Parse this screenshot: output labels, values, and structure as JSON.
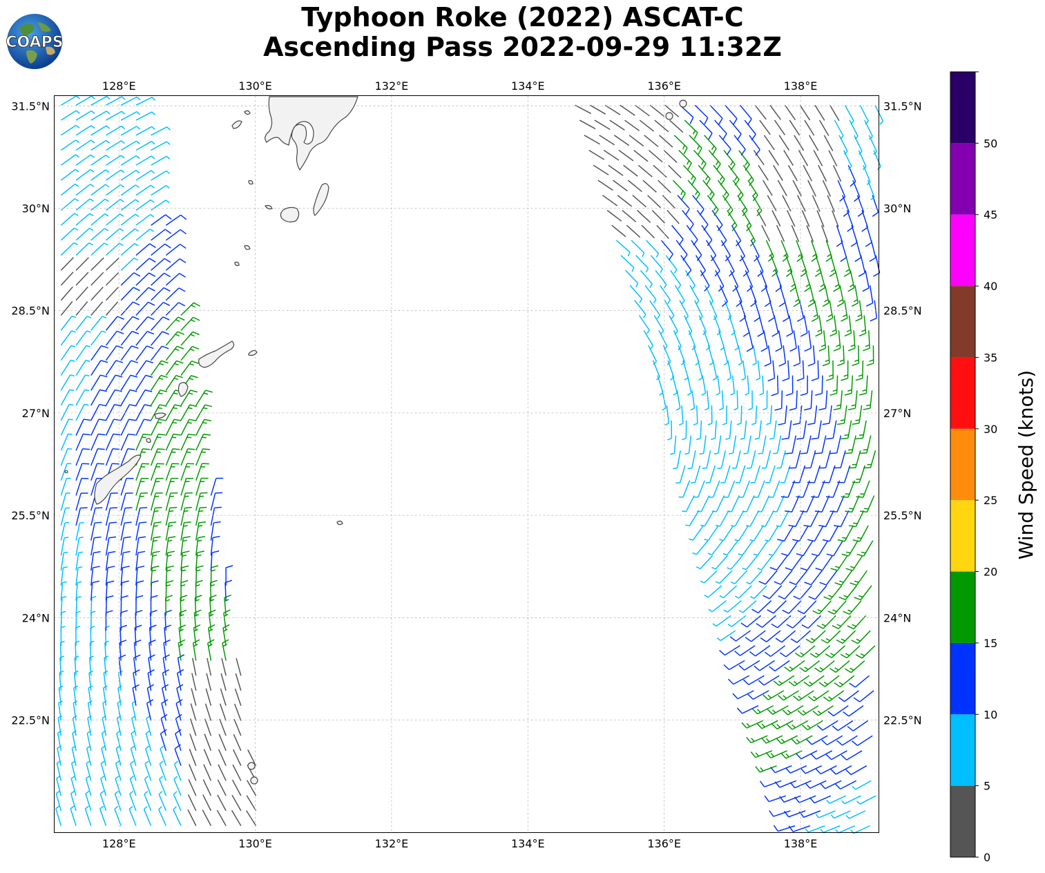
{
  "header": {
    "title_line1": "Typhoon Roke (2022) ASCAT-C",
    "title_line2": "Ascending Pass 2022-09-29 11:32Z",
    "logo_text": "COAPS"
  },
  "map": {
    "lon_labels": [
      "128°E",
      "130°E",
      "132°E",
      "134°E",
      "136°E",
      "138°E"
    ],
    "lat_labels": [
      "31.5°N",
      "30°N",
      "28.5°N",
      "27°N",
      "25.5°N",
      "24°N",
      "22.5°N"
    ],
    "lon_range": [
      127.05,
      139.15
    ],
    "lat_range": [
      20.85,
      31.65
    ],
    "gridlines": true,
    "swaths": [
      {
        "name": "west",
        "lon_edges_south": [
          127.1,
          130.2
        ],
        "lon_edges_north": [
          127.1,
          128.4
        ]
      },
      {
        "name": "east",
        "lon_edges_south": [
          137.9,
          139.15
        ],
        "lon_edges_north": [
          134.6,
          139.15
        ]
      }
    ]
  },
  "colorbar": {
    "label": "Wind Speed (knots)",
    "ticks": [
      "0",
      "5",
      "10",
      "15",
      "20",
      "25",
      "30",
      "35",
      "40",
      "45",
      "50"
    ],
    "bins": [
      {
        "min": 0,
        "max": 5,
        "color": "#555555"
      },
      {
        "min": 5,
        "max": 10,
        "color": "#00bfff"
      },
      {
        "min": 10,
        "max": 15,
        "color": "#0033ff"
      },
      {
        "min": 15,
        "max": 20,
        "color": "#009900"
      },
      {
        "min": 20,
        "max": 25,
        "color": "#ffd60f"
      },
      {
        "min": 25,
        "max": 30,
        "color": "#ff8c0a"
      },
      {
        "min": 30,
        "max": 35,
        "color": "#ff0f0f"
      },
      {
        "min": 35,
        "max": 40,
        "color": "#823b2a"
      },
      {
        "min": 40,
        "max": 45,
        "color": "#ff00ff"
      },
      {
        "min": 45,
        "max": 50,
        "color": "#8200b0"
      },
      {
        "min": 50,
        "max": 55,
        "color": "#2a0066"
      }
    ]
  }
}
